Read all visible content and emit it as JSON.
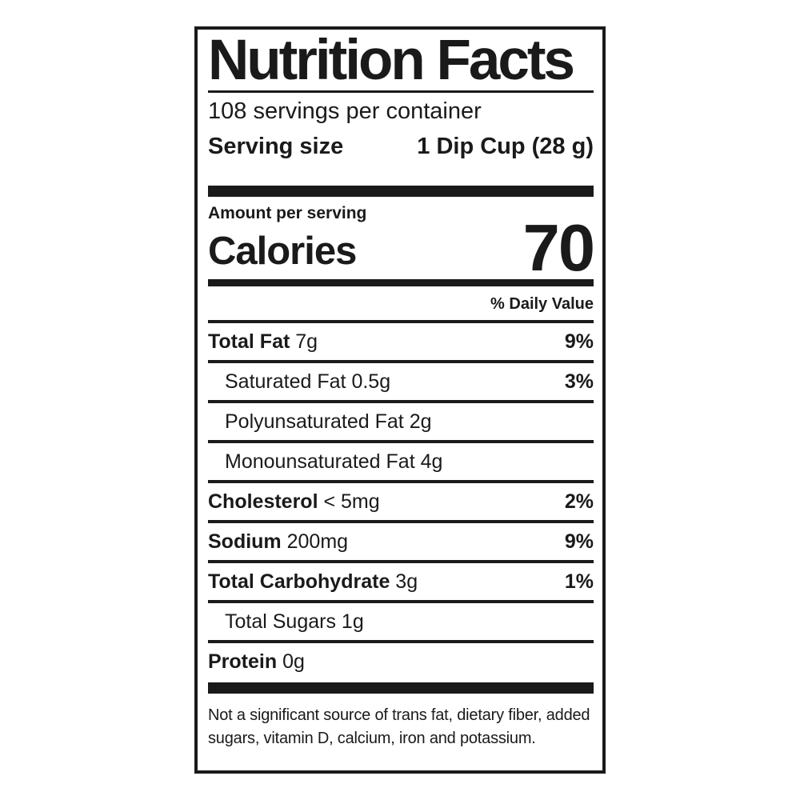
{
  "colors": {
    "ink": "#1a1a1a",
    "paper": "#ffffff"
  },
  "label": {
    "title": "Nutrition Facts",
    "servings_per_container": "108 servings per container",
    "serving_size": {
      "label": "Serving size",
      "value": "1 Dip Cup (28 g)"
    },
    "amount_per_serving": "Amount per serving",
    "calories": {
      "label": "Calories",
      "value": "70"
    },
    "daily_value_header": "% Daily Value",
    "nutrients": [
      {
        "name": "Total Fat",
        "amount": "7g",
        "daily_value": "9%"
      },
      {
        "name": "Saturated Fat",
        "amount": "0.5g",
        "daily_value": "3%"
      },
      {
        "name": "Polyunsaturated Fat",
        "amount": "2g",
        "daily_value": ""
      },
      {
        "name": "Monounsaturated Fat",
        "amount": "4g",
        "daily_value": ""
      },
      {
        "name": "Cholesterol",
        "amount": "< 5mg",
        "daily_value": "2%"
      },
      {
        "name": "Sodium",
        "amount": "200mg",
        "daily_value": "9%"
      },
      {
        "name": "Total Carbohydrate",
        "amount": "3g",
        "daily_value": "1%"
      },
      {
        "name": "Total Sugars",
        "amount": "1g",
        "daily_value": ""
      },
      {
        "name": "Protein",
        "amount": "0g",
        "daily_value": ""
      }
    ],
    "footnote": "Not a significant source of trans fat, dietary fiber, added sugars, vitamin D, calcium, iron and potassium."
  }
}
